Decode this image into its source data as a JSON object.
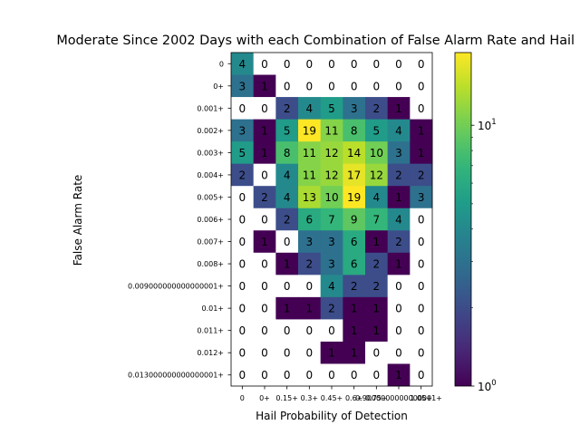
{
  "chart_data": {
    "type": "heatmap",
    "title": "Moderate Since 2002 Days with each Combination of False Alarm Rate and Hail POD",
    "xlabel": "Hail Probability of Detection",
    "ylabel": "False Alarm Rate",
    "x_tick_labels": [
      "0",
      "0+",
      "0.15+",
      "0.3+",
      "0.45+",
      "0.6+",
      "0.75+",
      "0.9000000000000001+",
      "1.05+"
    ],
    "y_tick_labels": [
      "0",
      "0+",
      "0.001+",
      "0.002+",
      "0.003+",
      "0.004+",
      "0.005+",
      "0.006+",
      "0.007+",
      "0.008+",
      "0.009000000000000001+",
      "0.01+",
      "0.011+",
      "0.012+",
      "0.013000000000000001+"
    ],
    "values": [
      [
        4,
        0,
        0,
        0,
        0,
        0,
        0,
        0,
        0
      ],
      [
        3,
        1,
        0,
        0,
        0,
        0,
        0,
        0,
        0
      ],
      [
        0,
        0,
        2,
        4,
        5,
        3,
        2,
        1,
        0
      ],
      [
        3,
        1,
        5,
        19,
        11,
        8,
        5,
        4,
        1
      ],
      [
        5,
        1,
        8,
        11,
        12,
        14,
        10,
        3,
        1
      ],
      [
        2,
        0,
        4,
        11,
        12,
        17,
        12,
        2,
        2
      ],
      [
        0,
        2,
        4,
        13,
        10,
        19,
        4,
        1,
        3
      ],
      [
        0,
        0,
        2,
        6,
        7,
        9,
        7,
        4,
        0
      ],
      [
        0,
        1,
        0,
        3,
        3,
        6,
        1,
        2,
        0
      ],
      [
        0,
        0,
        1,
        2,
        3,
        6,
        2,
        1,
        0
      ],
      [
        0,
        0,
        0,
        0,
        4,
        2,
        2,
        0,
        0
      ],
      [
        0,
        0,
        1,
        1,
        2,
        1,
        1,
        0,
        0
      ],
      [
        0,
        0,
        0,
        0,
        0,
        1,
        1,
        0,
        0
      ],
      [
        0,
        0,
        0,
        0,
        1,
        1,
        0,
        0,
        0
      ],
      [
        0,
        0,
        0,
        0,
        0,
        0,
        0,
        1,
        0
      ]
    ],
    "color_scale": "log",
    "colormap": "viridis",
    "colorbar_range": [
      1,
      19
    ],
    "colorbar_ticks": [
      {
        "value": 1,
        "base": "10",
        "exp": "0"
      },
      {
        "value": 10,
        "base": "10",
        "exp": "1"
      }
    ],
    "zero_cell_color": "#ffffff",
    "grid": false
  }
}
